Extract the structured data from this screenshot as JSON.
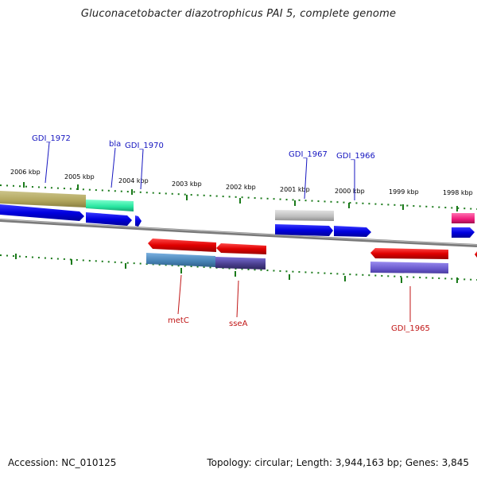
{
  "title": "Gluconacetobacter diazotrophicus PAI 5, complete genome",
  "footer": {
    "accession": "Accession: NC_010125",
    "topology": "Topology: circular; Length: 3,944,163 bp; Genes: 3,845"
  },
  "kbp_labels": [
    "2006 kbp",
    "2005 kbp",
    "2004 kbp",
    "2003 kbp",
    "2002 kbp",
    "2001 kbp",
    "2000 kbp",
    "1999 kbp",
    "1998 kbp"
  ],
  "gene_labels_top": [
    "GDI_1972",
    "bla",
    "GDI_1970",
    "GDI_1967",
    "GDI_1966"
  ],
  "gene_labels_bottom": [
    "metC",
    "sseA",
    "GDI_1965"
  ],
  "colors": {
    "backbone": "#7a7a7a",
    "tick": "#1a7a1a",
    "cds_forward": "#0000ee",
    "cds_reverse": "#ee0000",
    "label_forward": "#1515c0",
    "label_reverse": "#c01515"
  }
}
